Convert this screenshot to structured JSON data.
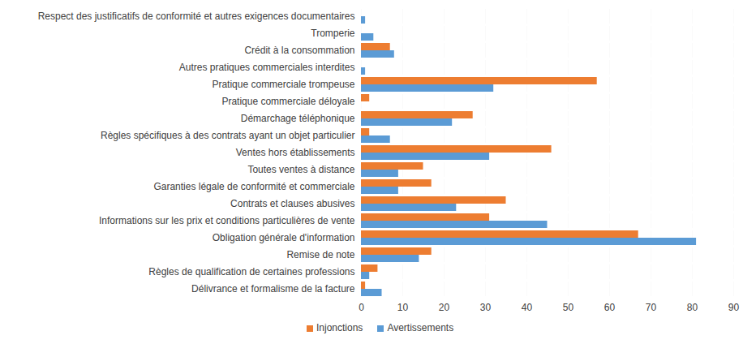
{
  "chart_data": {
    "type": "bar",
    "orientation": "horizontal",
    "categories": [
      "Respect des justificatifs de conformité et autres exigences documentaires",
      "Tromperie",
      "Crédit à la consommation",
      "Autres pratiques commerciales interdites",
      "Pratique commerciale trompeuse",
      "Pratique commerciale déloyale",
      "Démarchage téléphonique",
      "Règles spécifiques à des contrats ayant un objet particulier",
      "Ventes hors établissements",
      "Toutes ventes à distance",
      "Garanties légale de conformité et commerciale",
      "Contrats et clauses abusives",
      "Informations sur les prix et conditions particulières de vente",
      "Obligation générale d'information",
      "Remise de note",
      "Règles de qualification de certaines professions",
      "Délivrance et formalisme de la facture"
    ],
    "series": [
      {
        "name": "Injonctions",
        "color": "#ed7d31",
        "values": [
          0,
          0,
          7,
          0,
          57,
          2,
          27,
          2,
          46,
          15,
          17,
          35,
          31,
          67,
          17,
          4,
          1
        ]
      },
      {
        "name": "Avertissements",
        "color": "#5b9bd5",
        "values": [
          1,
          3,
          8,
          1,
          32,
          0,
          22,
          7,
          31,
          9,
          9,
          23,
          45,
          81,
          14,
          2,
          5
        ]
      }
    ],
    "xlim": [
      0,
      90
    ],
    "xticks": [
      0,
      10,
      20,
      30,
      40,
      50,
      60,
      70,
      80,
      90
    ],
    "grid": true,
    "legend": "bottom"
  }
}
